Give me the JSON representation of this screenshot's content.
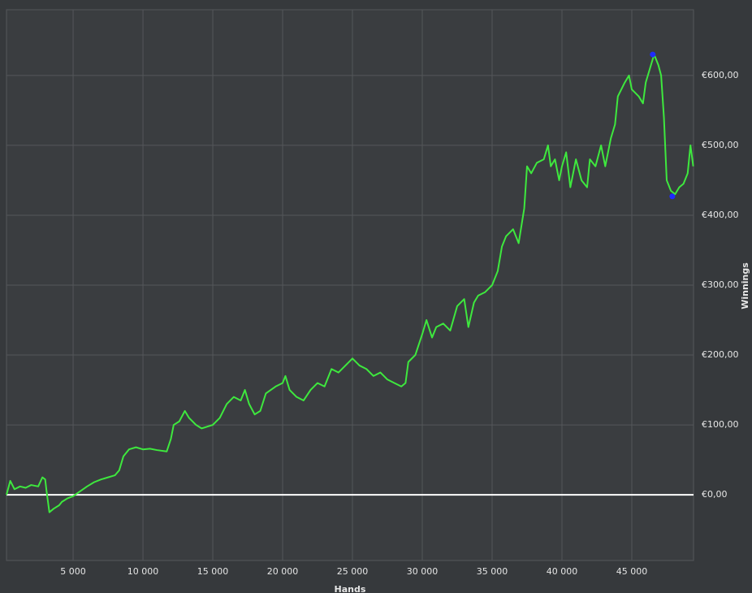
{
  "chart_data": {
    "type": "line",
    "x_label": "Hands",
    "y_label": "Winnings",
    "xlim": [
      230,
      49420
    ],
    "ylim": [
      -94,
      694
    ],
    "xticks": [
      {
        "value": 5000,
        "label": "5 000"
      },
      {
        "value": 10000,
        "label": "10 000"
      },
      {
        "value": 15000,
        "label": "15 000"
      },
      {
        "value": 20000,
        "label": "20 000"
      },
      {
        "value": 25000,
        "label": "25 000"
      },
      {
        "value": 30000,
        "label": "30 000"
      },
      {
        "value": 35000,
        "label": "35 000"
      },
      {
        "value": 40000,
        "label": "40 000"
      },
      {
        "value": 45000,
        "label": "45 000"
      }
    ],
    "yticks": [
      {
        "value": 0,
        "label": "€0,00"
      },
      {
        "value": 100,
        "label": "€100,00"
      },
      {
        "value": 200,
        "label": "€200,00"
      },
      {
        "value": 300,
        "label": "€300,00"
      },
      {
        "value": 400,
        "label": "€400,00"
      },
      {
        "value": 500,
        "label": "€500,00"
      },
      {
        "value": 600,
        "label": "€600,00"
      }
    ],
    "grid": true,
    "zero_line": true,
    "x": [
      230,
      500,
      800,
      1200,
      1600,
      2000,
      2500,
      2800,
      3000,
      3100,
      3300,
      3600,
      4000,
      4200,
      4600,
      5000,
      5500,
      6000,
      6500,
      7000,
      7500,
      8000,
      8300,
      8600,
      9000,
      9500,
      10000,
      10500,
      11000,
      11700,
      12000,
      12200,
      12600,
      13000,
      13300,
      13800,
      14200,
      15000,
      15500,
      16000,
      16500,
      17000,
      17300,
      17600,
      18000,
      18400,
      18800,
      19500,
      20000,
      20200,
      20500,
      21000,
      21500,
      22000,
      22500,
      23000,
      23500,
      24000,
      24500,
      25000,
      25500,
      26000,
      26500,
      27000,
      27500,
      28000,
      28500,
      28800,
      29000,
      29500,
      30000,
      30300,
      30700,
      31000,
      31500,
      32000,
      32500,
      33000,
      33300,
      33700,
      34000,
      34500,
      35000,
      35400,
      35700,
      36000,
      36500,
      36900,
      37300,
      37500,
      37800,
      38200,
      38700,
      39000,
      39200,
      39500,
      39800,
      40000,
      40300,
      40600,
      41000,
      41400,
      41800,
      42000,
      42400,
      42800,
      43100,
      43500,
      43800,
      44000,
      44500,
      44800,
      45000,
      45500,
      45800,
      46000,
      46300,
      46600,
      46900,
      47100,
      47300,
      47500,
      47800,
      48100,
      48400,
      48700,
      49000,
      49200,
      49400
    ],
    "series": [
      {
        "color": "#3ee83e",
        "values": [
          0,
          20,
          8,
          12,
          10,
          14,
          12,
          25,
          22,
          5,
          -25,
          -20,
          -15,
          -10,
          -5,
          -2,
          5,
          12,
          18,
          22,
          25,
          28,
          35,
          55,
          65,
          68,
          65,
          66,
          64,
          62,
          80,
          100,
          105,
          120,
          110,
          100,
          95,
          100,
          110,
          130,
          140,
          135,
          150,
          130,
          115,
          120,
          145,
          155,
          160,
          170,
          150,
          140,
          135,
          150,
          160,
          155,
          180,
          175,
          185,
          195,
          185,
          180,
          170,
          175,
          165,
          160,
          155,
          160,
          190,
          200,
          230,
          250,
          225,
          240,
          245,
          235,
          270,
          280,
          240,
          275,
          285,
          290,
          300,
          320,
          355,
          370,
          380,
          360,
          410,
          470,
          460,
          475,
          480,
          500,
          470,
          480,
          450,
          470,
          490,
          440,
          480,
          450,
          440,
          480,
          470,
          500,
          470,
          510,
          530,
          570,
          590,
          600,
          580,
          570,
          560,
          590,
          610,
          630,
          615,
          600,
          540,
          450,
          435,
          430,
          440,
          445,
          460,
          500,
          470
        ]
      }
    ],
    "markers": [
      {
        "x": 46500,
        "y": 630,
        "color": "#1f2bff"
      },
      {
        "x": 47900,
        "y": 427,
        "color": "#1f2bff"
      }
    ]
  }
}
